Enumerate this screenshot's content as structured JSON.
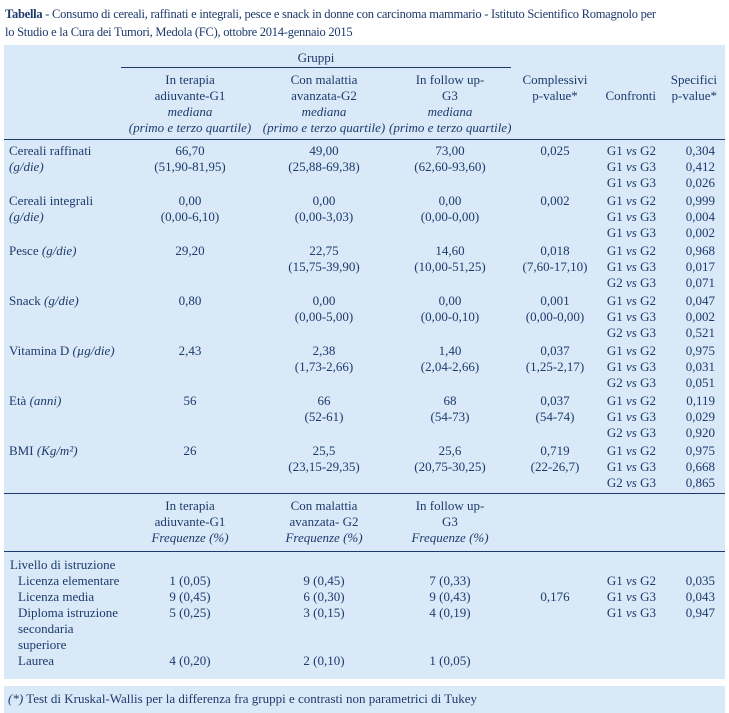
{
  "caption": {
    "label": "Tabella",
    "line1": " - Consumo di cereali, raffinati e integrali, pesce e snack in donne con carcinoma mammario - Istituto Scientifico Romagnolo per",
    "line2": "lo Studio e la Cura dei Tumori, Medola (FC), ottobre 2014-gennaio 2015"
  },
  "colors": {
    "table_bg": "#d9e9f7",
    "text": "#1d3a6d",
    "rule": "#1d3a6d",
    "page_bg": "#ffffff"
  },
  "header": {
    "gruppi": "Gruppi",
    "groups": [
      {
        "name1": "In terapia",
        "name2": "adiuvante-G1",
        "sub1": "mediana",
        "sub2": "(primo e terzo quartile)"
      },
      {
        "name1": "Con malattia",
        "name2": "avanzata-G2",
        "sub1": "mediana",
        "sub2": "(primo e terzo quartile)"
      },
      {
        "name1": "In follow up-",
        "name2": "G3",
        "sub1": "mediana",
        "sub2": "(primo e terzo quartile)"
      }
    ],
    "pvalue1": "Complessivi",
    "pvalue2": "p-value*",
    "confronti": "Confronti",
    "spec1": "Specifici",
    "spec2": "p-value*"
  },
  "header2": {
    "groups": [
      {
        "name1": "In terapia",
        "name2": "adiuvante-G1",
        "sub": "Frequenze (%)"
      },
      {
        "name1": "Con malattia",
        "name2": "avanzata- G2",
        "sub": "Frequenze (%)"
      },
      {
        "name1": "In follow up-",
        "name2": "G3",
        "sub": "Frequenze (%)"
      }
    ]
  },
  "rows": [
    {
      "label": "Cereali raffinati",
      "unit": "(g/die)",
      "unit_inline": false,
      "g1": [
        "66,70",
        "(51,90-81,95)"
      ],
      "g2": [
        "49,00",
        "(25,88-69,38)"
      ],
      "g3": [
        "73,00",
        "(62,60-93,60)"
      ],
      "p": [
        "0,025"
      ],
      "confronti": [
        "G1 vs G2",
        "G1 vs G3",
        "G1 vs G3"
      ],
      "spec": [
        "0,304",
        "0,412",
        "0,026"
      ]
    },
    {
      "label": "Cereali integrali",
      "unit": "(g/die)",
      "unit_inline": false,
      "g1": [
        "0,00",
        "(0,00-6,10)"
      ],
      "g2": [
        "0,00",
        "(0,00-3,03)"
      ],
      "g3": [
        "0,00",
        "(0,00-0,00)"
      ],
      "p": [
        "0,002"
      ],
      "confronti": [
        "G1 vs G2",
        "G1 vs G3",
        "G1 vs G3"
      ],
      "spec": [
        "0,999",
        "0,004",
        "0,002"
      ]
    },
    {
      "label": "Pesce",
      "unit": "(g/die)",
      "unit_inline": true,
      "g1": [
        "29,20"
      ],
      "g2": [
        "22,75",
        "(15,75-39,90)"
      ],
      "g3": [
        "14,60",
        "(10,00-51,25)"
      ],
      "p": [
        "0,018",
        "(7,60-17,10)"
      ],
      "confronti": [
        "G1 vs G2",
        "G1 vs G3",
        "G2 vs G3"
      ],
      "spec": [
        "0,968",
        "0,017",
        "0,071"
      ]
    },
    {
      "label": "Snack",
      "unit": "(g/die)",
      "unit_inline": true,
      "g1": [
        "0,80"
      ],
      "g2": [
        "0,00",
        "(0,00-5,00)"
      ],
      "g3": [
        "0,00",
        "(0,00-0,10)"
      ],
      "p": [
        "0,001",
        "(0,00-0,00)"
      ],
      "confronti": [
        "G1 vs G2",
        "G1 vs G3",
        "G2 vs G3"
      ],
      "spec": [
        "0,047",
        "0,002",
        "0,521"
      ]
    },
    {
      "label": "Vitamina D",
      "unit": "(µg/die)",
      "unit_inline": true,
      "g1": [
        "2,43"
      ],
      "g2": [
        "2,38",
        "(1,73-2,66)"
      ],
      "g3": [
        "1,40",
        "(2,04-2,66)"
      ],
      "p": [
        "0,037",
        "(1,25-2,17)"
      ],
      "confronti": [
        "G1 vs G2",
        "G1 vs G3",
        "G2 vs G3"
      ],
      "spec": [
        "0,975",
        "0,031",
        "0,051"
      ]
    },
    {
      "label": "Età",
      "unit": "(anni)",
      "unit_inline": true,
      "g1": [
        "56"
      ],
      "g2": [
        "66",
        "(52-61)"
      ],
      "g3": [
        "68",
        "(54-73)"
      ],
      "p": [
        "0,037",
        "(54-74)"
      ],
      "confronti": [
        "G1 vs G2",
        "G1 vs G3",
        "G2 vs G3"
      ],
      "spec": [
        "0,119",
        "0,029",
        "0,920"
      ]
    },
    {
      "label": "BMI",
      "unit": "(Kg/m²)",
      "unit_inline": true,
      "g1": [
        "26"
      ],
      "g2": [
        "25,5",
        "(23,15-29,35)"
      ],
      "g3": [
        "25,6",
        "(20,75-30,25)"
      ],
      "p": [
        "0,719",
        "(22-26,7)"
      ],
      "confronti": [
        "G1 vs G2",
        "G1 vs G3",
        "G2 vs G3"
      ],
      "spec": [
        "0,975",
        "0,668",
        "0,865"
      ]
    }
  ],
  "education": {
    "section_label": "Livello di istruzione",
    "rows": [
      {
        "label": "Licenza elementare",
        "g1": "1 (0,05)",
        "g2": "9 (0,45)",
        "g3": "7 (0,33)",
        "p": "",
        "confronto": "G1 vs G2",
        "spec": "0,035"
      },
      {
        "label": "Licenza media",
        "g1": "9 (0,45)",
        "g2": "6 (0,30)",
        "g3": "9 (0,43)",
        "p": "0,176",
        "confronto": "G1 vs G3",
        "spec": "0,043"
      },
      {
        "label": "Diploma istruzione secondaria superiore",
        "g1": "5 (0,25)",
        "g2": "3 (0,15)",
        "g3": "4 (0,19)",
        "p": "",
        "confronto": "G1 vs G3",
        "spec": "0,947"
      },
      {
        "label": "Laurea",
        "g1": "4 (0,20)",
        "g2": "2 (0,10)",
        "g3": "1 (0,05)",
        "p": "",
        "confronto": "",
        "spec": ""
      }
    ]
  },
  "footnote": {
    "marker": "(*)",
    "text": " Test di Kruskal-Wallis per la differenza fra gruppi e contrasti non parametrici di Tukey"
  }
}
